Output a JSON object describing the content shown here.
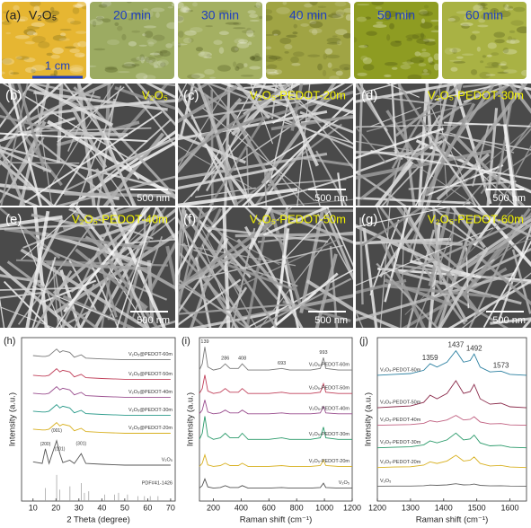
{
  "photos": {
    "panel": "(a)",
    "scale": "1 cm",
    "tiles": [
      {
        "label": "V₂O₅",
        "color": "#e6b632"
      },
      {
        "label": "20 min",
        "color": "#9cab62"
      },
      {
        "label": "30 min",
        "color": "#a4b062"
      },
      {
        "label": "40 min",
        "color": "#a0a444"
      },
      {
        "label": "50 min",
        "color": "#8e9c22"
      },
      {
        "label": "60 min",
        "color": "#a9b244"
      }
    ]
  },
  "sem": {
    "scale": "500 nm",
    "panels": [
      {
        "letter": "(b)",
        "title": "V₂O₅"
      },
      {
        "letter": "(c)",
        "title": "V₂O₅-PEDOT-20m"
      },
      {
        "letter": "(d)",
        "title": "V₂O₅-PEDOT-30m"
      },
      {
        "letter": "(e)",
        "title": "V₂O₅-PEDOT-40m"
      },
      {
        "letter": "(f)",
        "title": "V₂O₅-PEDOT-50m"
      },
      {
        "letter": "(g)",
        "title": "V₂O₅-PEDOT-60m"
      }
    ]
  },
  "chart_data": [
    {
      "type": "line",
      "panel": "(h)",
      "x_label": "2 Theta (degree)",
      "y_label": "Intensity (a.u.)",
      "xlim": [
        5,
        72
      ],
      "xticks": [
        10,
        20,
        30,
        40,
        50,
        60,
        70
      ],
      "ylim": [
        0,
        10
      ],
      "label_position": "right",
      "x": [
        10,
        14,
        15.4,
        17,
        20.3,
        21.7,
        23,
        26,
        28,
        31,
        33,
        40,
        50,
        60,
        70
      ],
      "series": [
        {
          "name": "V₂O₅@PEDOT-60m",
          "color": "#7a7a7a",
          "values": [
            8.9,
            8.85,
            8.85,
            8.9,
            9.3,
            9.1,
            9.2,
            9.1,
            8.8,
            8.95,
            8.75,
            8.7,
            8.65,
            8.65,
            8.65
          ]
        },
        {
          "name": "V₂O₅@PEDOT-50m",
          "color": "#c0405a",
          "values": [
            7.7,
            7.65,
            7.65,
            7.7,
            8.1,
            7.9,
            8.0,
            7.9,
            7.6,
            7.75,
            7.55,
            7.5,
            7.45,
            7.45,
            7.45
          ]
        },
        {
          "name": "V₂O₅@PEDOT-40m",
          "color": "#9a4f8f",
          "values": [
            6.6,
            6.55,
            6.55,
            6.6,
            7.0,
            6.8,
            6.9,
            6.8,
            6.5,
            6.65,
            6.45,
            6.4,
            6.35,
            6.35,
            6.35
          ]
        },
        {
          "name": "V₂O₅@PEDOT-30m",
          "color": "#2a9a8a",
          "values": [
            5.5,
            5.45,
            5.45,
            5.5,
            5.9,
            5.7,
            5.8,
            5.7,
            5.4,
            5.55,
            5.35,
            5.3,
            5.25,
            5.25,
            5.25
          ]
        },
        {
          "name": "V₂O₅@PEDOT-20m",
          "color": "#d8b020",
          "values": [
            4.4,
            4.35,
            4.35,
            4.4,
            4.8,
            4.6,
            4.7,
            4.6,
            4.3,
            4.45,
            4.25,
            4.2,
            4.15,
            4.15,
            4.15
          ]
        },
        {
          "name": "V₂O₅",
          "color": "#555555",
          "values": [
            2.4,
            2.3,
            3.2,
            2.3,
            3.7,
            2.9,
            2.35,
            2.5,
            2.3,
            2.9,
            2.3,
            2.25,
            2.2,
            2.2,
            2.2
          ]
        }
      ],
      "annotations": [
        {
          "text": "(200)",
          "x": 15.4
        },
        {
          "text": "(001)",
          "x": 20.3
        },
        {
          "text": "(101)",
          "x": 21.7
        },
        {
          "text": "(301)",
          "x": 31
        }
      ],
      "reference": {
        "name": "PDF#41-1426",
        "color": "#999999",
        "x": [
          15.4,
          20.3,
          21.7,
          26.1,
          31.0,
          32.4,
          34.3,
          41.3,
          45.5,
          47.3,
          51.2,
          55.7,
          58.6,
          61.1,
          64.5
        ],
        "values": [
          0.8,
          1.6,
          0.7,
          0.9,
          1.1,
          0.5,
          0.6,
          0.4,
          0.4,
          0.5,
          0.4,
          0.3,
          0.3,
          0.3,
          0.3
        ]
      }
    },
    {
      "type": "line",
      "panel": "(i)",
      "x_label": "Raman shift (cm⁻¹)",
      "y_label": "Intensity (a.u.)",
      "xlim": [
        100,
        1200
      ],
      "xticks": [
        200,
        400,
        600,
        800,
        1000,
        1200
      ],
      "ylim": [
        0,
        10.6
      ],
      "label_position": "right",
      "x": [
        100,
        120,
        139,
        160,
        200,
        250,
        286,
        320,
        380,
        408,
        450,
        520,
        600,
        693,
        750,
        900,
        970,
        993,
        1010,
        1100,
        1200
      ],
      "peaks": [
        139,
        286,
        408,
        693,
        993
      ],
      "series": [
        {
          "name": "V₂O₅-PEDOT-60m",
          "color": "#7a7a7a",
          "values": [
            8.5,
            8.9,
            10,
            8.7,
            8.5,
            8.6,
            8.9,
            8.6,
            8.6,
            8.9,
            8.5,
            8.5,
            8.5,
            8.6,
            8.5,
            8.5,
            8.6,
            9.3,
            8.6,
            8.5,
            8.5
          ]
        },
        {
          "name": "V₂O₅-PEDOT-50m",
          "color": "#c0405a",
          "values": [
            6.98,
            7.3,
            8.18,
            7.14,
            6.98,
            7.06,
            7.3,
            7.06,
            7.06,
            7.3,
            6.98,
            6.98,
            6.98,
            7.06,
            6.98,
            6.98,
            7.06,
            7.62,
            7.06,
            6.98,
            6.98
          ]
        },
        {
          "name": "V₂O₅-PEDOT-40m",
          "color": "#9a4f8f",
          "values": [
            5.66,
            5.9,
            6.56,
            5.78,
            5.66,
            5.72,
            5.9,
            5.72,
            5.72,
            5.9,
            5.66,
            5.66,
            5.66,
            5.72,
            5.66,
            5.66,
            5.72,
            6.14,
            5.72,
            5.66,
            5.66
          ]
        },
        {
          "name": "V₂O₅-PEDOT-30m",
          "color": "#2a9a6a",
          "values": [
            4.0,
            4.4,
            5.5,
            4.2,
            4.0,
            4.1,
            4.4,
            4.1,
            4.1,
            4.4,
            4.0,
            4.0,
            4.0,
            4.1,
            4.0,
            4.0,
            4.1,
            4.8,
            4.1,
            4.0,
            4.0
          ]
        },
        {
          "name": "V₂O₅-PEDOT-20m",
          "color": "#d8b020",
          "values": [
            2.25,
            2.45,
            3.0,
            2.35,
            2.25,
            2.3,
            2.45,
            2.3,
            2.3,
            2.45,
            2.25,
            2.25,
            2.25,
            2.3,
            2.25,
            2.25,
            2.3,
            2.65,
            2.3,
            2.25,
            2.25
          ]
        },
        {
          "name": "V₂O₅",
          "color": "#555555",
          "values": [
            0.84,
            1.0,
            1.44,
            0.92,
            0.84,
            0.88,
            1.0,
            0.88,
            0.88,
            1.0,
            0.84,
            0.84,
            0.84,
            0.88,
            0.84,
            0.84,
            0.88,
            1.16,
            0.88,
            0.84,
            0.84
          ]
        }
      ]
    },
    {
      "type": "line",
      "panel": "(j)",
      "x_label": "Raman shift (cm⁻¹)",
      "y_label": "Intensity (a.u.)",
      "xlim": [
        1200,
        1650
      ],
      "xticks": [
        1200,
        1300,
        1400,
        1500,
        1600
      ],
      "ylim": [
        0,
        10
      ],
      "label_position": "left",
      "x": [
        1200,
        1250,
        1300,
        1340,
        1359,
        1380,
        1410,
        1437,
        1460,
        1480,
        1492,
        1510,
        1540,
        1573,
        1600,
        1650
      ],
      "peaks": [
        1359,
        1437,
        1492,
        1573
      ],
      "series": [
        {
          "name": "V₂O₅-PEDOT-60m",
          "color": "#2a7fa0",
          "values": [
            7.7,
            7.75,
            7.8,
            8.0,
            8.4,
            8.2,
            8.5,
            9.2,
            8.5,
            8.6,
            9.0,
            8.2,
            7.9,
            7.95,
            7.75,
            7.7
          ]
        },
        {
          "name": "V₂O₅-PEDOT-50m",
          "color": "#8a2a4a",
          "values": [
            5.71,
            5.77,
            5.82,
            6.04,
            6.48,
            6.26,
            6.59,
            7.36,
            6.59,
            6.7,
            7.14,
            6.26,
            5.93,
            5.99,
            5.77,
            5.71
          ]
        },
        {
          "name": "V₂O₅-PEDOT-40m",
          "color": "#c06080",
          "values": [
            4.64,
            4.66,
            4.68,
            4.76,
            4.92,
            4.84,
            4.96,
            5.24,
            4.96,
            5.0,
            5.16,
            4.84,
            4.72,
            4.74,
            4.66,
            4.64
          ]
        },
        {
          "name": "V₂O₅-PEDOT-30m",
          "color": "#2a9a6a",
          "values": [
            3.26,
            3.29,
            3.32,
            3.44,
            3.68,
            3.56,
            3.74,
            4.16,
            3.74,
            3.8,
            4.04,
            3.56,
            3.38,
            3.41,
            3.29,
            3.26
          ]
        },
        {
          "name": "V₂O₅-PEDOT-20m",
          "color": "#d8b020",
          "values": [
            2.05,
            2.08,
            2.1,
            2.2,
            2.4,
            2.3,
            2.45,
            2.8,
            2.45,
            2.5,
            2.7,
            2.3,
            2.15,
            2.18,
            2.08,
            2.05
          ]
        },
        {
          "name": "V₂O₅",
          "color": "#666666",
          "values": [
            0.91,
            0.92,
            0.92,
            0.94,
            0.98,
            0.96,
            0.99,
            1.06,
            0.99,
            1.0,
            1.04,
            0.96,
            0.93,
            0.94,
            0.92,
            0.91
          ]
        }
      ]
    }
  ]
}
